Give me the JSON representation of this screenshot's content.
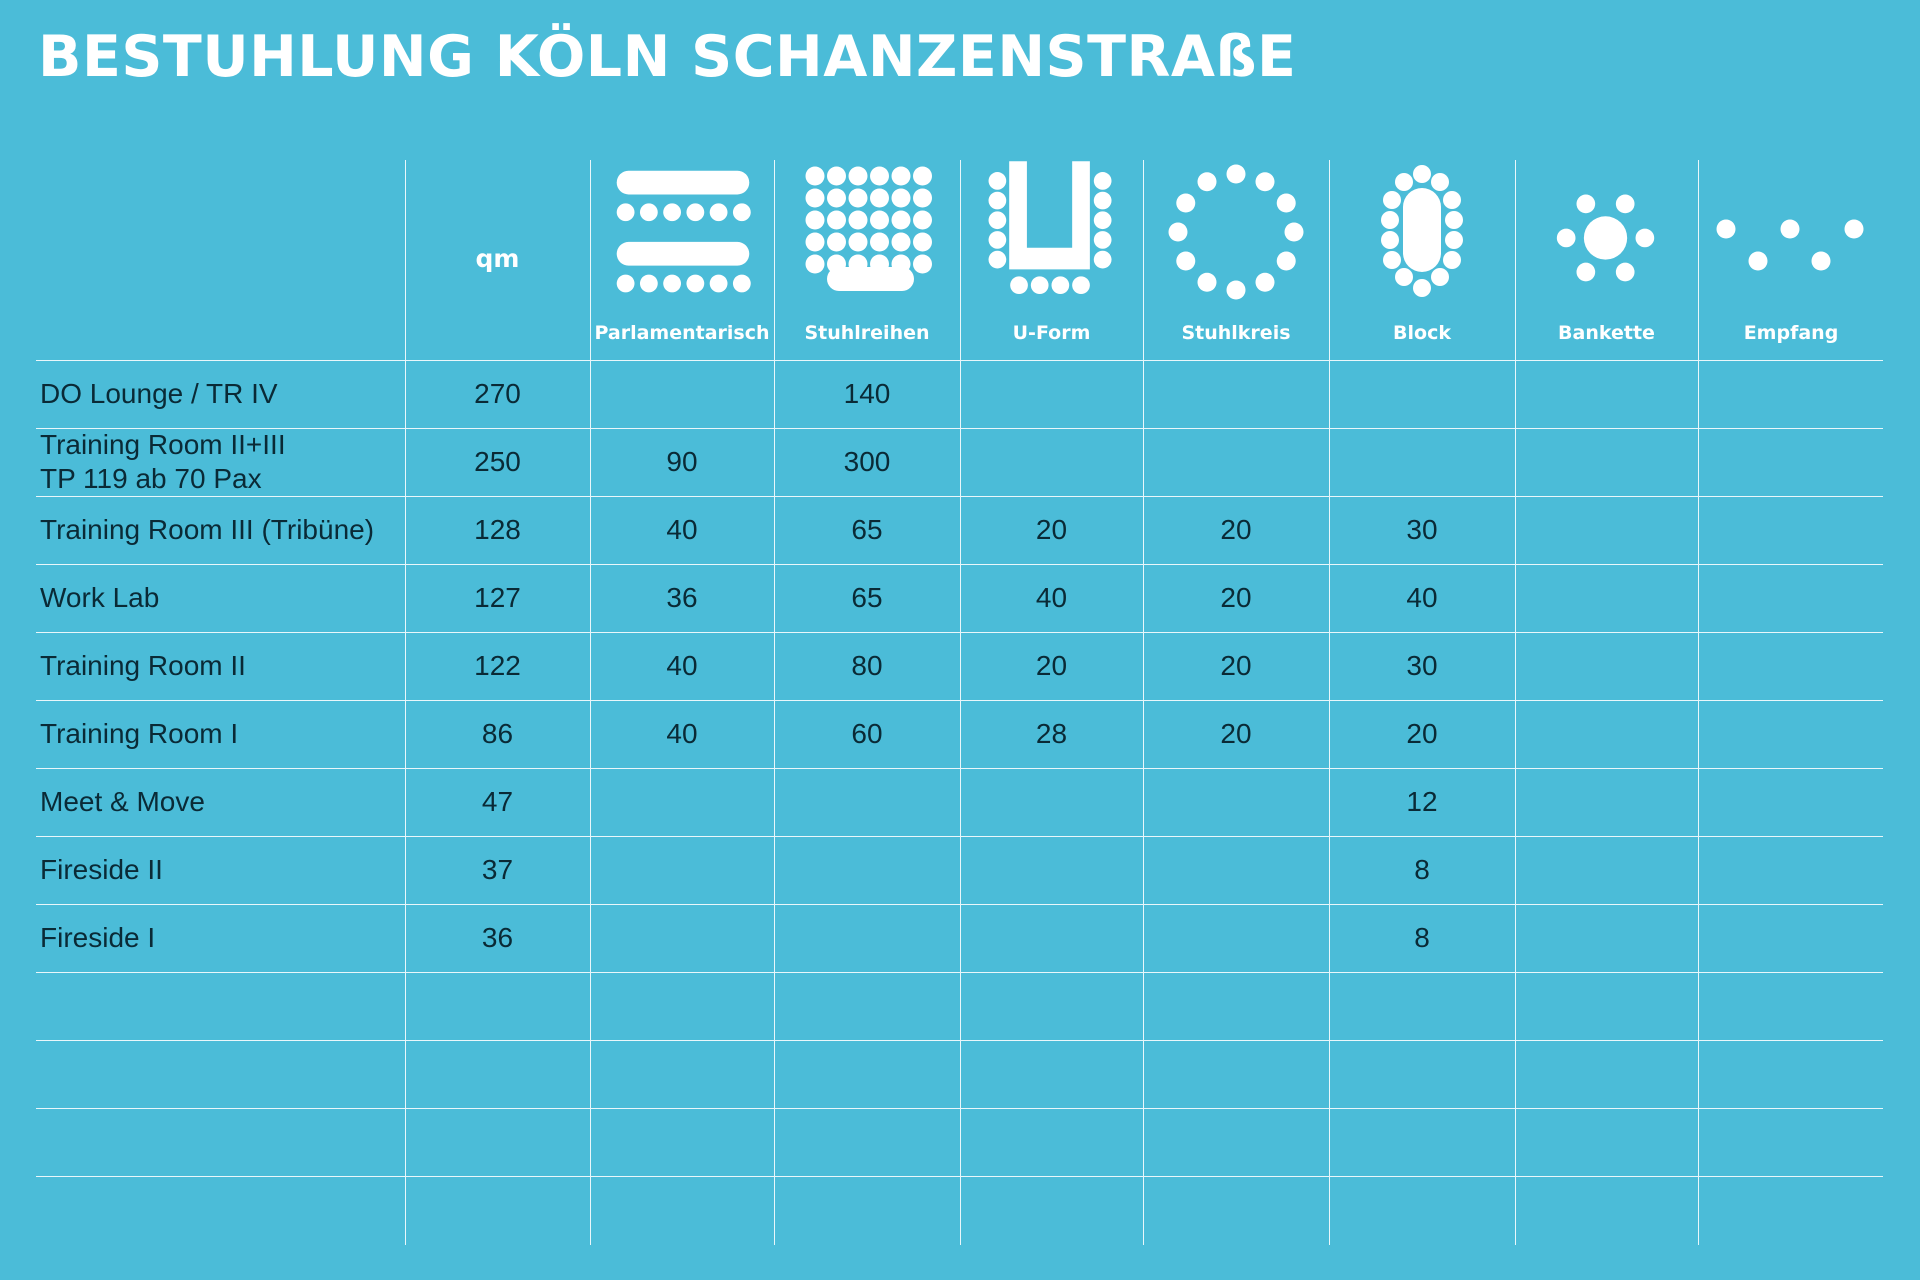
{
  "title": "BESTUHLUNG KÖLN SCHANZENSTRAßE",
  "qm_label": "qm",
  "columns": [
    {
      "key": "parlamentarisch",
      "label": "Parlamentarisch",
      "icon": "parliamentary-seating-icon"
    },
    {
      "key": "stuhlreihen",
      "label": "Stuhlreihen",
      "icon": "chair-rows-icon"
    },
    {
      "key": "u_form",
      "label": "U-Form",
      "icon": "u-shape-seating-icon"
    },
    {
      "key": "stuhlkreis",
      "label": "Stuhlkreis",
      "icon": "chair-circle-icon"
    },
    {
      "key": "block",
      "label": "Block",
      "icon": "block-table-icon"
    },
    {
      "key": "bankette",
      "label": "Bankette",
      "icon": "banquet-table-icon"
    },
    {
      "key": "empfang",
      "label": "Empfang",
      "icon": "reception-icon"
    }
  ],
  "rows": [
    {
      "name": [
        "DO Lounge / TR IV"
      ],
      "qm": "270",
      "values": [
        "",
        "140",
        "",
        "",
        "",
        "",
        ""
      ]
    },
    {
      "name": [
        "Training Room II+III",
        "TP 119 ab 70 Pax"
      ],
      "qm": "250",
      "values": [
        "90",
        "300",
        "",
        "",
        "",
        "",
        ""
      ]
    },
    {
      "name": [
        "Training Room III (Tribüne)"
      ],
      "qm": "128",
      "values": [
        "40",
        "65",
        "20",
        "20",
        "30",
        "",
        ""
      ]
    },
    {
      "name": [
        "Work Lab"
      ],
      "qm": "127",
      "values": [
        "36",
        "65",
        "40",
        "20",
        "40",
        "",
        ""
      ]
    },
    {
      "name": [
        "Training Room II"
      ],
      "qm": "122",
      "values": [
        "40",
        "80",
        "20",
        "20",
        "30",
        "",
        ""
      ]
    },
    {
      "name": [
        "Training Room I"
      ],
      "qm": "86",
      "values": [
        "40",
        "60",
        "28",
        "20",
        "20",
        "",
        ""
      ]
    },
    {
      "name": [
        "Meet & Move"
      ],
      "qm": "47",
      "values": [
        "",
        "",
        "",
        "",
        "12",
        "",
        ""
      ]
    },
    {
      "name": [
        "Fireside II"
      ],
      "qm": "37",
      "values": [
        "",
        "",
        "",
        "",
        "8",
        "",
        ""
      ]
    },
    {
      "name": [
        "Fireside I"
      ],
      "qm": "36",
      "values": [
        "",
        "",
        "",
        "",
        "8",
        "",
        ""
      ]
    }
  ],
  "colors": {
    "background": "#4bbcd8",
    "lines": "#e9f7fb",
    "text": "#0a2a36",
    "header_text": "#ffffff"
  }
}
